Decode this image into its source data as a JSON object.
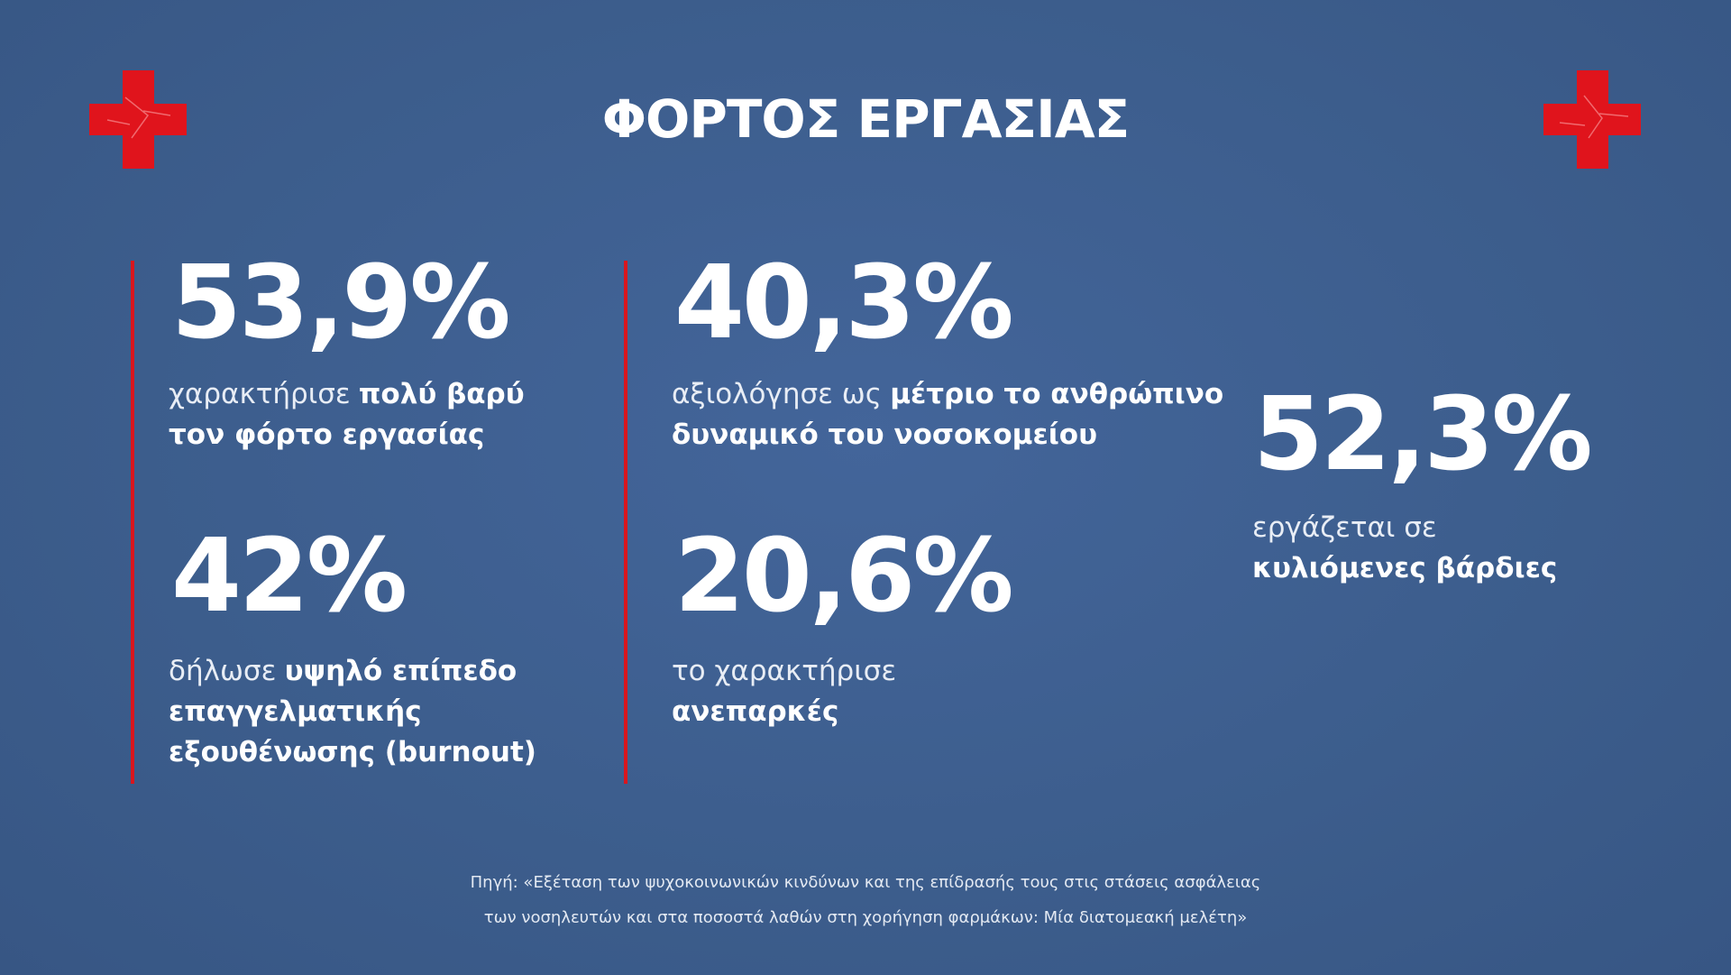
{
  "title": "ΦΟΡΤΟΣ ΕΡΓΑΣΙΑΣ",
  "stats": [
    {
      "number": "53,9%",
      "lines": [
        [
          {
            "text": "χαρακτήρισε",
            "bold": false
          },
          {
            "text": "πολύ βαρύ",
            "bold": true
          }
        ],
        [
          {
            "text": "τον φόρτο εργασίας",
            "bold": true
          }
        ]
      ]
    },
    {
      "number": "42%",
      "lines": [
        [
          {
            "text": "δήλωσε",
            "bold": false
          },
          {
            "text": "υψηλό επίπεδο",
            "bold": true
          }
        ],
        [
          {
            "text": "επαγγελματικής",
            "bold": true
          }
        ],
        [
          {
            "text": "εξουθένωσης (burnout)",
            "bold": true
          }
        ]
      ]
    },
    {
      "number": "40,3%",
      "lines": [
        [
          {
            "text": "αξιολόγησε ως",
            "bold": false
          },
          {
            "text": "μέτριο το ανθρώπινο",
            "bold": true
          }
        ],
        [
          {
            "text": "δυναμικό του νοσοκομείου",
            "bold": true
          }
        ]
      ]
    },
    {
      "number": "20,6%",
      "lines": [
        [
          {
            "text": "το χαρακτήρισε",
            "bold": false
          }
        ],
        [
          {
            "text": "ανεπαρκές",
            "bold": true
          }
        ]
      ]
    },
    {
      "number": "52,3%",
      "lines": [
        [
          {
            "text": "εργάζεται σε",
            "bold": false
          }
        ],
        [
          {
            "text": "κυλιόμενες βάρδιες",
            "bold": true
          }
        ]
      ]
    }
  ],
  "source": [
    "Πηγή: «Εξέταση των ψυχοκοινωνικών κινδύνων και της επίδρασής τους στις στάσεις ασφάλειας",
    "των νοσηλευτών και στα ποσοστά λαθών στη χορήγηση φαρμάκων: Μία διατομεακή μελέτη»"
  ]
}
